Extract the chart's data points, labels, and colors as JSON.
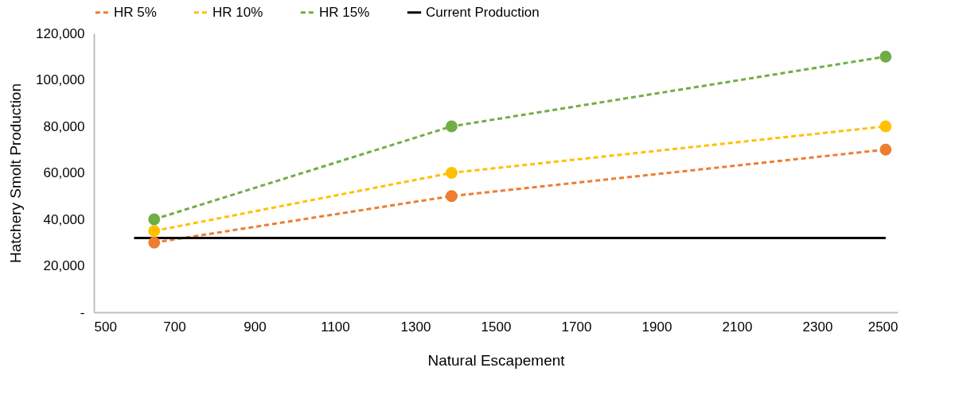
{
  "chart_data": {
    "type": "line",
    "xlabel": "Natural Escapement",
    "ylabel": "Hatchery Smolt Production",
    "xlim": [
      500,
      2500
    ],
    "xticks": [
      500,
      700,
      900,
      1100,
      1300,
      1500,
      1700,
      1900,
      2100,
      2300,
      2500
    ],
    "ylim": [
      0,
      120000
    ],
    "yticks": [
      {
        "value": 0,
        "label": "-"
      },
      {
        "value": 20000,
        "label": "20,000"
      },
      {
        "value": 40000,
        "label": "40,000"
      },
      {
        "value": 60000,
        "label": "60,000"
      },
      {
        "value": 80000,
        "label": "80,000"
      },
      {
        "value": 100000,
        "label": "100,000"
      },
      {
        "value": 120000,
        "label": "120,000"
      }
    ],
    "grid": false,
    "legend": "top",
    "series": [
      {
        "name": "HR 5%",
        "color": "#ed7d31",
        "line_style": "dashed",
        "marker": "circle",
        "x": [
          650,
          1390,
          2470
        ],
        "values": [
          30000,
          50000,
          70000
        ]
      },
      {
        "name": "HR 10%",
        "color": "#ffc000",
        "line_style": "dashed",
        "marker": "circle",
        "x": [
          650,
          1390,
          2470
        ],
        "values": [
          35000,
          60000,
          80000
        ]
      },
      {
        "name": "HR 15%",
        "color": "#70ad47",
        "line_style": "dashed",
        "marker": "circle",
        "x": [
          650,
          1390,
          2470
        ],
        "values": [
          40000,
          80000,
          110000
        ]
      },
      {
        "name": "Current Production",
        "color": "#000000",
        "line_style": "solid",
        "marker": "none",
        "x": [
          600,
          2470
        ],
        "values": [
          32000,
          32000
        ]
      }
    ]
  }
}
